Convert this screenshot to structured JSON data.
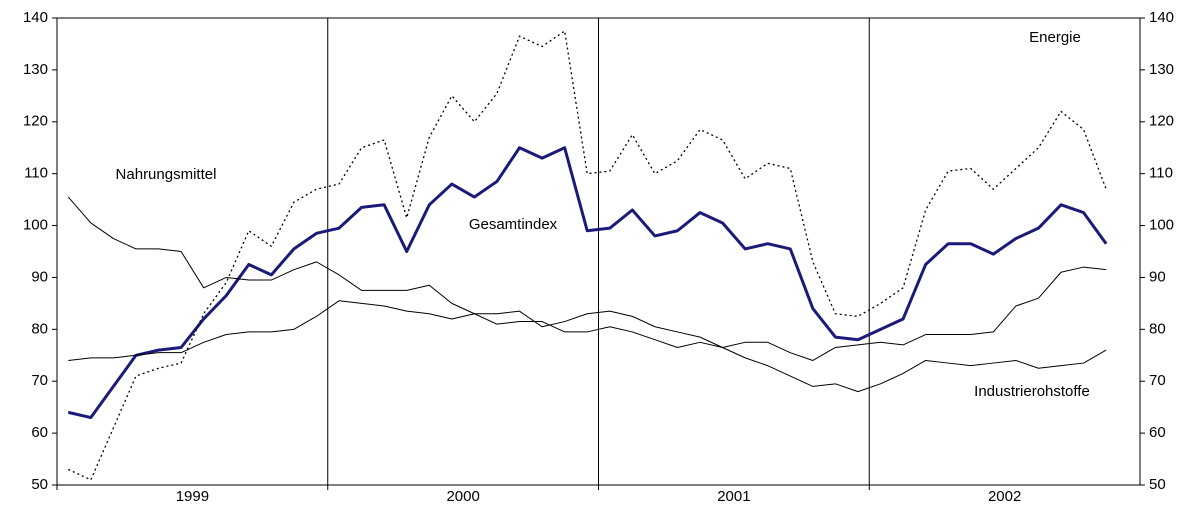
{
  "chart_data": {
    "type": "line",
    "categories": [
      null,
      null,
      null,
      null,
      null,
      null,
      null,
      null,
      null,
      null,
      null,
      null,
      null,
      null,
      null,
      null,
      null,
      null,
      null,
      null,
      null,
      null,
      null,
      null,
      null,
      null,
      null,
      null,
      null,
      null,
      null,
      null,
      null,
      null,
      null,
      null,
      null,
      null,
      null,
      null,
      null,
      null,
      null,
      null,
      null,
      null,
      null
    ],
    "x_groups": [
      "1999",
      "2000",
      "2001",
      "2002"
    ],
    "ylim": [
      50,
      140
    ],
    "yticks": [
      50,
      60,
      70,
      80,
      90,
      100,
      110,
      120,
      130,
      140
    ],
    "y2lim": [
      50,
      140
    ],
    "y2ticks": [
      50,
      60,
      70,
      80,
      90,
      100,
      110,
      120,
      130,
      140
    ],
    "grid": false,
    "series": [
      {
        "name": "Gesamtindex",
        "color": "#1a1a7a",
        "style": "bold",
        "values": [
          64,
          63,
          69,
          75,
          76,
          76.5,
          82,
          86.5,
          92.5,
          90.5,
          95.5,
          98.5,
          99.5,
          103.5,
          104,
          95,
          104,
          108,
          105.5,
          108.5,
          115,
          113,
          115,
          99,
          99.5,
          103,
          98,
          99,
          102.5,
          100.5,
          95.5,
          96.5,
          95.5,
          84,
          78.5,
          78,
          80,
          82,
          92.5,
          96.5,
          96.5,
          94.5,
          97.5,
          99.5,
          104,
          102.5,
          96.5
        ]
      },
      {
        "name": "Energie",
        "color": "#000000",
        "style": "dotted",
        "values": [
          53,
          51,
          61,
          71,
          72.5,
          73.5,
          83,
          89,
          99,
          96,
          104.5,
          107,
          108,
          115,
          116.5,
          101.5,
          117,
          125,
          120,
          125.5,
          136.5,
          134.5,
          137.5,
          110,
          110.5,
          117.5,
          110,
          112.5,
          118.5,
          116.5,
          109,
          112,
          111,
          93,
          83,
          82.5,
          85,
          88,
          103,
          110.5,
          111,
          107,
          111,
          115,
          122,
          118.5,
          107
        ]
      },
      {
        "name": "Nahrungsmittel",
        "color": "#000000",
        "style": "thin",
        "values": [
          105.5,
          100.5,
          97.5,
          95.5,
          95.5,
          95,
          88,
          90,
          89.5,
          89.5,
          91.5,
          93,
          90.5,
          87.5,
          87.5,
          87.5,
          88.5,
          85,
          83,
          81,
          81.5,
          81.5,
          79.5,
          79.5,
          80.5,
          79.5,
          78,
          76.5,
          77.5,
          76.5,
          77.5,
          77.5,
          75.5,
          74,
          76.5,
          77,
          77.5,
          77,
          79,
          79,
          79,
          79.5,
          84.5,
          86,
          91,
          92,
          91.5
        ]
      },
      {
        "name": "Industrierohstoffe",
        "color": "#000000",
        "style": "thin",
        "values": [
          74,
          74.5,
          74.5,
          75,
          75.5,
          75.5,
          77.5,
          79,
          79.5,
          79.5,
          80,
          82.5,
          85.5,
          85,
          84.5,
          83.5,
          83,
          82,
          83,
          83,
          83.5,
          80.5,
          81.5,
          83,
          83.5,
          82.5,
          80.5,
          79.5,
          78.5,
          76.5,
          74.5,
          73,
          71,
          69,
          69.5,
          68,
          69.5,
          71.5,
          74,
          73.5,
          73,
          73.5,
          74,
          72.5,
          73,
          73.5,
          76
        ]
      }
    ]
  }
}
